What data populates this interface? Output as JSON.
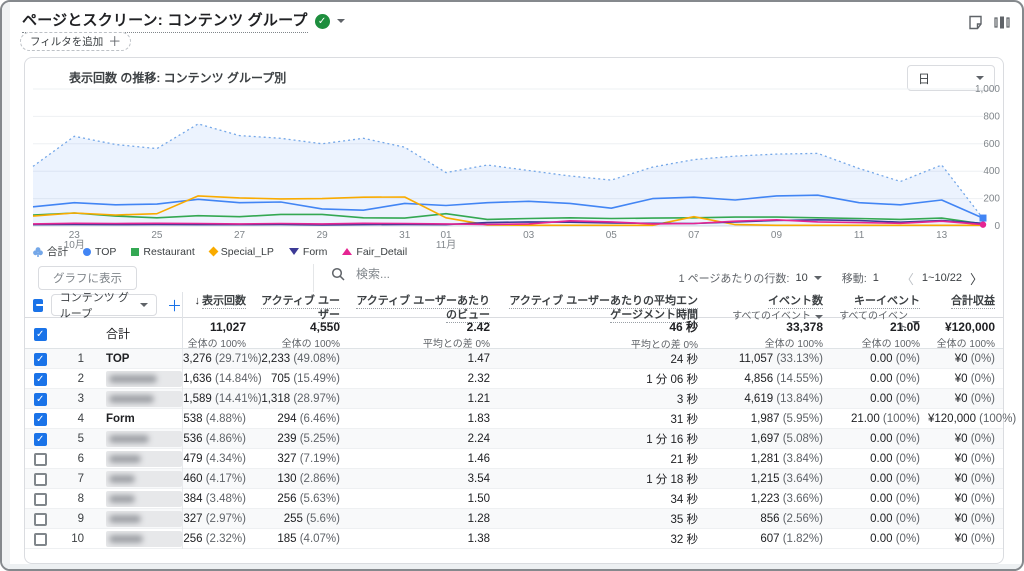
{
  "page": {
    "title": "ページとスクリーン: コンテンツ グループ",
    "filter_chip": "フィルタを追加",
    "accent_color": "#1a73e8",
    "badge_color": "#1e8e3e"
  },
  "chart": {
    "title": "表示回数 の推移: コンテンツ グループ別",
    "granularity": "日"
  },
  "chart_data": {
    "type": "line",
    "title": "表示回数 の推移: コンテンツ グループ別",
    "x": [
      "10/22",
      "10/23",
      "10/24",
      "10/25",
      "10/26",
      "10/27",
      "10/28",
      "10/29",
      "10/30",
      "10/31",
      "11/01",
      "11/02",
      "11/03",
      "11/04",
      "11/05",
      "11/06",
      "11/07",
      "11/08",
      "11/09",
      "11/10",
      "11/11",
      "11/12",
      "11/13",
      "11/14"
    ],
    "xticks": [
      {
        "idx": 1,
        "l1": "23",
        "l2": "10月"
      },
      {
        "idx": 3,
        "l1": "25"
      },
      {
        "idx": 5,
        "l1": "27"
      },
      {
        "idx": 7,
        "l1": "29"
      },
      {
        "idx": 9,
        "l1": "31"
      },
      {
        "idx": 10,
        "l1": "01",
        "l2": "11月"
      },
      {
        "idx": 12,
        "l1": "03"
      },
      {
        "idx": 14,
        "l1": "05"
      },
      {
        "idx": 16,
        "l1": "07"
      },
      {
        "idx": 18,
        "l1": "09"
      },
      {
        "idx": 20,
        "l1": "11"
      },
      {
        "idx": 22,
        "l1": "13"
      }
    ],
    "ylim": [
      0,
      1000
    ],
    "yticks": [
      {
        "v": 0,
        "label": "0"
      },
      {
        "v": 200,
        "label": "200"
      },
      {
        "v": 400,
        "label": "400"
      },
      {
        "v": 600,
        "label": "600"
      },
      {
        "v": 800,
        "label": "800"
      },
      {
        "v": 1000,
        "label": "1,000"
      }
    ],
    "grid": true,
    "legend_position": "bottom",
    "series": [
      {
        "name": "合計",
        "color": "#74a7e8",
        "style": "dotted",
        "fill": "rgba(66,133,244,0.10)",
        "marker": "clover",
        "values": [
          435,
          655,
          595,
          565,
          745,
          660,
          640,
          600,
          640,
          575,
          390,
          445,
          405,
          365,
          335,
          430,
          485,
          510,
          525,
          530,
          420,
          325,
          445,
          55
        ]
      },
      {
        "name": "TOP",
        "color": "#4285F4",
        "style": "solid",
        "marker": "circle",
        "end_marker": "square",
        "values": [
          140,
          170,
          155,
          160,
          195,
          170,
          175,
          125,
          115,
          165,
          150,
          170,
          180,
          165,
          130,
          200,
          210,
          190,
          220,
          225,
          170,
          155,
          190,
          58
        ]
      },
      {
        "name": "Restaurant",
        "color": "#34A853",
        "style": "solid",
        "marker": "square",
        "values": [
          80,
          95,
          72,
          60,
          75,
          68,
          85,
          85,
          60,
          58,
          90,
          48,
          55,
          60,
          55,
          58,
          60,
          65,
          65,
          60,
          55,
          48,
          58,
          15
        ]
      },
      {
        "name": "Special_LP",
        "color": "#F9AB00",
        "style": "solid",
        "marker": "diamond",
        "values": [
          72,
          95,
          80,
          90,
          220,
          205,
          198,
          200,
          210,
          212,
          60,
          8,
          5,
          5,
          5,
          5,
          68,
          10,
          5,
          5,
          5,
          5,
          5,
          5
        ]
      },
      {
        "name": "Form",
        "color": "#3C3A96",
        "style": "solid",
        "marker": "triangle-down",
        "values": [
          10,
          12,
          10,
          12,
          10,
          10,
          12,
          8,
          10,
          12,
          10,
          25,
          30,
          28,
          22,
          20,
          18,
          30,
          40,
          45,
          40,
          28,
          40,
          20
        ]
      },
      {
        "name": "Fair_Detail",
        "color": "#E52592",
        "style": "solid",
        "marker": "triangle-up",
        "end_marker": "circle",
        "values": [
          15,
          20,
          18,
          20,
          18,
          15,
          18,
          15,
          20,
          18,
          15,
          12,
          15,
          38,
          30,
          15,
          18,
          35,
          45,
          30,
          25,
          20,
          35,
          10
        ]
      }
    ]
  },
  "toolbar": {
    "plot_button": "グラフに表示",
    "search_placeholder": "検索..."
  },
  "pagination": {
    "rows_label": "1 ページあたりの行数:",
    "rows_value": "10",
    "goto_label": "移動:",
    "goto_value": "1",
    "range": "1~10/22"
  },
  "table": {
    "dimension_selector": "コンテンツ グループ",
    "columns": [
      {
        "label": "表示回数",
        "sorted": true
      },
      {
        "label": "アクティブ ユーザー"
      },
      {
        "label": "アクティブ ユーザーあたりのビュー"
      },
      {
        "label": "アクティブ ユーザーあたりの平均エンゲージメント時間"
      },
      {
        "label": "イベント数",
        "sub": "すべてのイベント"
      },
      {
        "label": "キーイベント",
        "sub": "すべてのイベント"
      },
      {
        "label": "合計収益"
      }
    ],
    "totals": {
      "label": "合計",
      "cells": [
        {
          "v": "11,027",
          "s": "全体の 100%"
        },
        {
          "v": "4,550",
          "s": "全体の 100%"
        },
        {
          "v": "2.42",
          "s": "平均との差 0%"
        },
        {
          "v": "46 秒",
          "s": "平均との差 0%"
        },
        {
          "v": "33,378",
          "s": "全体の 100%"
        },
        {
          "v": "21.00",
          "s": "全体の 100%"
        },
        {
          "v": "¥120,000",
          "s": "全体の 100%"
        }
      ]
    },
    "rows": [
      {
        "num": "1",
        "name": "TOP",
        "masked": false,
        "checked": true,
        "cells": [
          {
            "v": "3,276",
            "p": "(29.71%)"
          },
          {
            "v": "2,233",
            "p": "(49.08%)"
          },
          {
            "v": "1.47"
          },
          {
            "v": "24 秒"
          },
          {
            "v": "11,057",
            "p": "(33.13%)"
          },
          {
            "v": "0.00",
            "p": "(0%)"
          },
          {
            "v": "¥0",
            "p": "(0%)"
          }
        ]
      },
      {
        "num": "2",
        "name": "",
        "masked": true,
        "mask_w": 48,
        "checked": true,
        "cells": [
          {
            "v": "1,636",
            "p": "(14.84%)"
          },
          {
            "v": "705",
            "p": "(15.49%)"
          },
          {
            "v": "2.32"
          },
          {
            "v": "1 分 06 秒"
          },
          {
            "v": "4,856",
            "p": "(14.55%)"
          },
          {
            "v": "0.00",
            "p": "(0%)"
          },
          {
            "v": "¥0",
            "p": "(0%)"
          }
        ]
      },
      {
        "num": "3",
        "name": "",
        "masked": true,
        "mask_w": 45,
        "checked": true,
        "cells": [
          {
            "v": "1,589",
            "p": "(14.41%)"
          },
          {
            "v": "1,318",
            "p": "(28.97%)"
          },
          {
            "v": "1.21"
          },
          {
            "v": "3 秒"
          },
          {
            "v": "4,619",
            "p": "(13.84%)"
          },
          {
            "v": "0.00",
            "p": "(0%)"
          },
          {
            "v": "¥0",
            "p": "(0%)"
          }
        ]
      },
      {
        "num": "4",
        "name": "Form",
        "masked": false,
        "checked": true,
        "cells": [
          {
            "v": "538",
            "p": "(4.88%)"
          },
          {
            "v": "294",
            "p": "(6.46%)"
          },
          {
            "v": "1.83"
          },
          {
            "v": "31 秒"
          },
          {
            "v": "1,987",
            "p": "(5.95%)"
          },
          {
            "v": "21.00",
            "p": "(100%)"
          },
          {
            "v": "¥120,000",
            "p": "(100%)"
          }
        ]
      },
      {
        "num": "5",
        "name": "",
        "masked": true,
        "mask_w": 40,
        "checked": true,
        "cells": [
          {
            "v": "536",
            "p": "(4.86%)"
          },
          {
            "v": "239",
            "p": "(5.25%)"
          },
          {
            "v": "2.24"
          },
          {
            "v": "1 分 16 秒"
          },
          {
            "v": "1,697",
            "p": "(5.08%)"
          },
          {
            "v": "0.00",
            "p": "(0%)"
          },
          {
            "v": "¥0",
            "p": "(0%)"
          }
        ]
      },
      {
        "num": "6",
        "name": "",
        "masked": true,
        "mask_w": 32,
        "checked": false,
        "cells": [
          {
            "v": "479",
            "p": "(4.34%)"
          },
          {
            "v": "327",
            "p": "(7.19%)"
          },
          {
            "v": "1.46"
          },
          {
            "v": "21 秒"
          },
          {
            "v": "1,281",
            "p": "(3.84%)"
          },
          {
            "v": "0.00",
            "p": "(0%)"
          },
          {
            "v": "¥0",
            "p": "(0%)"
          }
        ]
      },
      {
        "num": "7",
        "name": "",
        "masked": true,
        "mask_w": 26,
        "checked": false,
        "cells": [
          {
            "v": "460",
            "p": "(4.17%)"
          },
          {
            "v": "130",
            "p": "(2.86%)"
          },
          {
            "v": "3.54"
          },
          {
            "v": "1 分 18 秒"
          },
          {
            "v": "1,215",
            "p": "(3.64%)"
          },
          {
            "v": "0.00",
            "p": "(0%)"
          },
          {
            "v": "¥0",
            "p": "(0%)"
          }
        ]
      },
      {
        "num": "8",
        "name": "",
        "masked": true,
        "mask_w": 26,
        "checked": false,
        "cells": [
          {
            "v": "384",
            "p": "(3.48%)"
          },
          {
            "v": "256",
            "p": "(5.63%)"
          },
          {
            "v": "1.50"
          },
          {
            "v": "34 秒"
          },
          {
            "v": "1,223",
            "p": "(3.66%)"
          },
          {
            "v": "0.00",
            "p": "(0%)"
          },
          {
            "v": "¥0",
            "p": "(0%)"
          }
        ]
      },
      {
        "num": "9",
        "name": "",
        "masked": true,
        "mask_w": 32,
        "checked": false,
        "cells": [
          {
            "v": "327",
            "p": "(2.97%)"
          },
          {
            "v": "255",
            "p": "(5.6%)"
          },
          {
            "v": "1.28"
          },
          {
            "v": "35 秒"
          },
          {
            "v": "856",
            "p": "(2.56%)"
          },
          {
            "v": "0.00",
            "p": "(0%)"
          },
          {
            "v": "¥0",
            "p": "(0%)"
          }
        ]
      },
      {
        "num": "10",
        "name": "",
        "masked": true,
        "mask_w": 34,
        "checked": false,
        "cells": [
          {
            "v": "256",
            "p": "(2.32%)"
          },
          {
            "v": "185",
            "p": "(4.07%)"
          },
          {
            "v": "1.38"
          },
          {
            "v": "32 秒"
          },
          {
            "v": "607",
            "p": "(1.82%)"
          },
          {
            "v": "0.00",
            "p": "(0%)"
          },
          {
            "v": "¥0",
            "p": "(0%)"
          }
        ]
      }
    ]
  }
}
